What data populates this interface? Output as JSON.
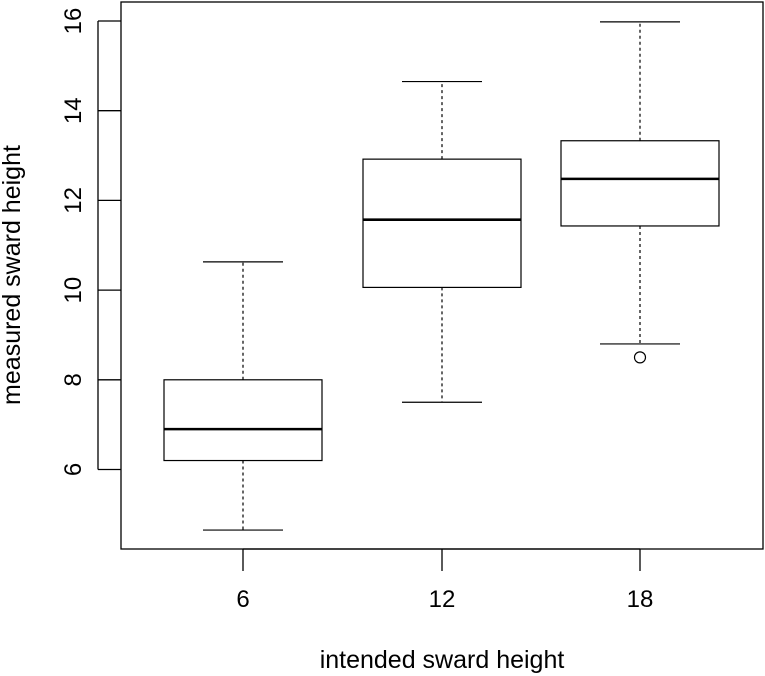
{
  "chart_data": {
    "type": "box",
    "title": "",
    "xlabel": "intended sward height",
    "ylabel": "measured sward height",
    "categories": [
      "6",
      "12",
      "18"
    ],
    "ylim": [
      4.2,
      16.4
    ],
    "y_ticks": [
      6,
      8,
      10,
      12,
      14,
      16
    ],
    "grid": false,
    "boxes": [
      {
        "category": "6",
        "whisker_low": 4.65,
        "q1": 6.2,
        "median": 6.9,
        "q3": 8.0,
        "whisker_high": 10.63,
        "outliers": []
      },
      {
        "category": "12",
        "whisker_low": 7.5,
        "q1": 10.06,
        "median": 11.57,
        "q3": 12.92,
        "whisker_high": 14.65,
        "outliers": []
      },
      {
        "category": "18",
        "whisker_low": 8.8,
        "q1": 11.43,
        "median": 12.48,
        "q3": 13.33,
        "whisker_high": 15.98,
        "outliers": [
          8.5
        ]
      }
    ]
  }
}
